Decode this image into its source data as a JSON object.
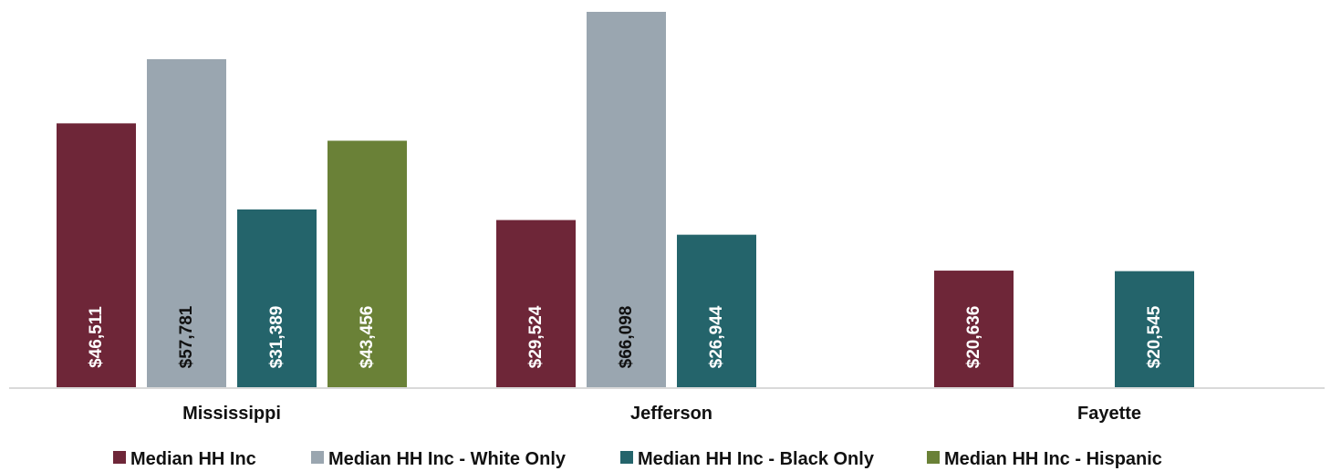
{
  "chart_data": {
    "type": "bar",
    "title": "",
    "xlabel": "",
    "ylabel": "",
    "categories": [
      "Mississippi",
      "Jefferson",
      "Fayette"
    ],
    "series": [
      {
        "name": "Median HH Inc",
        "color": "#6e2638",
        "label_color": "#ffffff",
        "values": [
          46511,
          29524,
          20636
        ],
        "labels": [
          "$46,511",
          "$29,524",
          "$20,636"
        ]
      },
      {
        "name": "Median HH Inc - White Only",
        "color": "#9aa6b0",
        "label_color": "#111111",
        "values": [
          57781,
          66098,
          null
        ],
        "labels": [
          "$57,781",
          "$66,098",
          null
        ]
      },
      {
        "name": "Median HH Inc - Black Only",
        "color": "#24646b",
        "label_color": "#ffffff",
        "values": [
          31389,
          26944,
          20545
        ],
        "labels": [
          "$31,389",
          "$26,944",
          "$20,545"
        ]
      },
      {
        "name": "Median HH Inc - Hispanic",
        "color": "#6a8137",
        "label_color": "#ffffff",
        "values": [
          43456,
          null,
          null
        ],
        "labels": [
          "$43,456",
          null,
          null
        ]
      }
    ],
    "ylim": [
      0,
      66098
    ],
    "grid": false,
    "legend": "bottom"
  }
}
